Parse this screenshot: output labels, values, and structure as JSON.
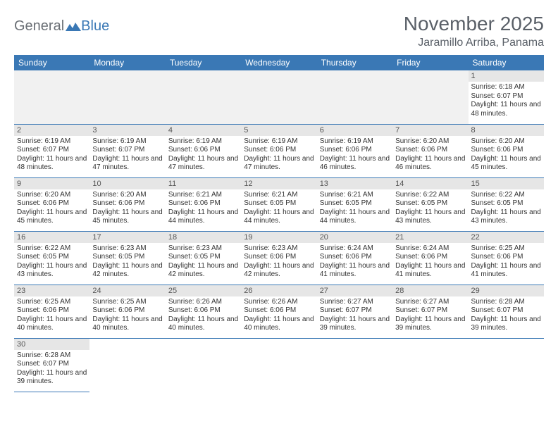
{
  "logo": {
    "text1": "General",
    "text2": "Blue"
  },
  "title": "November 2025",
  "location": "Jaramillo Arriba, Panama",
  "colors": {
    "header_bg": "#3a78b5",
    "header_text": "#ffffff",
    "daynum_bg": "#e6e6e6",
    "border": "#3a78b5",
    "title_text": "#5a6068"
  },
  "weekdays": [
    "Sunday",
    "Monday",
    "Tuesday",
    "Wednesday",
    "Thursday",
    "Friday",
    "Saturday"
  ],
  "leading_blanks": 6,
  "days": [
    {
      "n": 1,
      "sr": "6:18 AM",
      "ss": "6:07 PM",
      "dl": "11 hours and 48 minutes."
    },
    {
      "n": 2,
      "sr": "6:19 AM",
      "ss": "6:07 PM",
      "dl": "11 hours and 48 minutes."
    },
    {
      "n": 3,
      "sr": "6:19 AM",
      "ss": "6:07 PM",
      "dl": "11 hours and 47 minutes."
    },
    {
      "n": 4,
      "sr": "6:19 AM",
      "ss": "6:06 PM",
      "dl": "11 hours and 47 minutes."
    },
    {
      "n": 5,
      "sr": "6:19 AM",
      "ss": "6:06 PM",
      "dl": "11 hours and 47 minutes."
    },
    {
      "n": 6,
      "sr": "6:19 AM",
      "ss": "6:06 PM",
      "dl": "11 hours and 46 minutes."
    },
    {
      "n": 7,
      "sr": "6:20 AM",
      "ss": "6:06 PM",
      "dl": "11 hours and 46 minutes."
    },
    {
      "n": 8,
      "sr": "6:20 AM",
      "ss": "6:06 PM",
      "dl": "11 hours and 45 minutes."
    },
    {
      "n": 9,
      "sr": "6:20 AM",
      "ss": "6:06 PM",
      "dl": "11 hours and 45 minutes."
    },
    {
      "n": 10,
      "sr": "6:20 AM",
      "ss": "6:06 PM",
      "dl": "11 hours and 45 minutes."
    },
    {
      "n": 11,
      "sr": "6:21 AM",
      "ss": "6:06 PM",
      "dl": "11 hours and 44 minutes."
    },
    {
      "n": 12,
      "sr": "6:21 AM",
      "ss": "6:05 PM",
      "dl": "11 hours and 44 minutes."
    },
    {
      "n": 13,
      "sr": "6:21 AM",
      "ss": "6:05 PM",
      "dl": "11 hours and 44 minutes."
    },
    {
      "n": 14,
      "sr": "6:22 AM",
      "ss": "6:05 PM",
      "dl": "11 hours and 43 minutes."
    },
    {
      "n": 15,
      "sr": "6:22 AM",
      "ss": "6:05 PM",
      "dl": "11 hours and 43 minutes."
    },
    {
      "n": 16,
      "sr": "6:22 AM",
      "ss": "6:05 PM",
      "dl": "11 hours and 43 minutes."
    },
    {
      "n": 17,
      "sr": "6:23 AM",
      "ss": "6:05 PM",
      "dl": "11 hours and 42 minutes."
    },
    {
      "n": 18,
      "sr": "6:23 AM",
      "ss": "6:05 PM",
      "dl": "11 hours and 42 minutes."
    },
    {
      "n": 19,
      "sr": "6:23 AM",
      "ss": "6:06 PM",
      "dl": "11 hours and 42 minutes."
    },
    {
      "n": 20,
      "sr": "6:24 AM",
      "ss": "6:06 PM",
      "dl": "11 hours and 41 minutes."
    },
    {
      "n": 21,
      "sr": "6:24 AM",
      "ss": "6:06 PM",
      "dl": "11 hours and 41 minutes."
    },
    {
      "n": 22,
      "sr": "6:25 AM",
      "ss": "6:06 PM",
      "dl": "11 hours and 41 minutes."
    },
    {
      "n": 23,
      "sr": "6:25 AM",
      "ss": "6:06 PM",
      "dl": "11 hours and 40 minutes."
    },
    {
      "n": 24,
      "sr": "6:25 AM",
      "ss": "6:06 PM",
      "dl": "11 hours and 40 minutes."
    },
    {
      "n": 25,
      "sr": "6:26 AM",
      "ss": "6:06 PM",
      "dl": "11 hours and 40 minutes."
    },
    {
      "n": 26,
      "sr": "6:26 AM",
      "ss": "6:06 PM",
      "dl": "11 hours and 40 minutes."
    },
    {
      "n": 27,
      "sr": "6:27 AM",
      "ss": "6:07 PM",
      "dl": "11 hours and 39 minutes."
    },
    {
      "n": 28,
      "sr": "6:27 AM",
      "ss": "6:07 PM",
      "dl": "11 hours and 39 minutes."
    },
    {
      "n": 29,
      "sr": "6:28 AM",
      "ss": "6:07 PM",
      "dl": "11 hours and 39 minutes."
    },
    {
      "n": 30,
      "sr": "6:28 AM",
      "ss": "6:07 PM",
      "dl": "11 hours and 39 minutes."
    }
  ],
  "labels": {
    "sunrise": "Sunrise:",
    "sunset": "Sunset:",
    "daylight": "Daylight:"
  }
}
